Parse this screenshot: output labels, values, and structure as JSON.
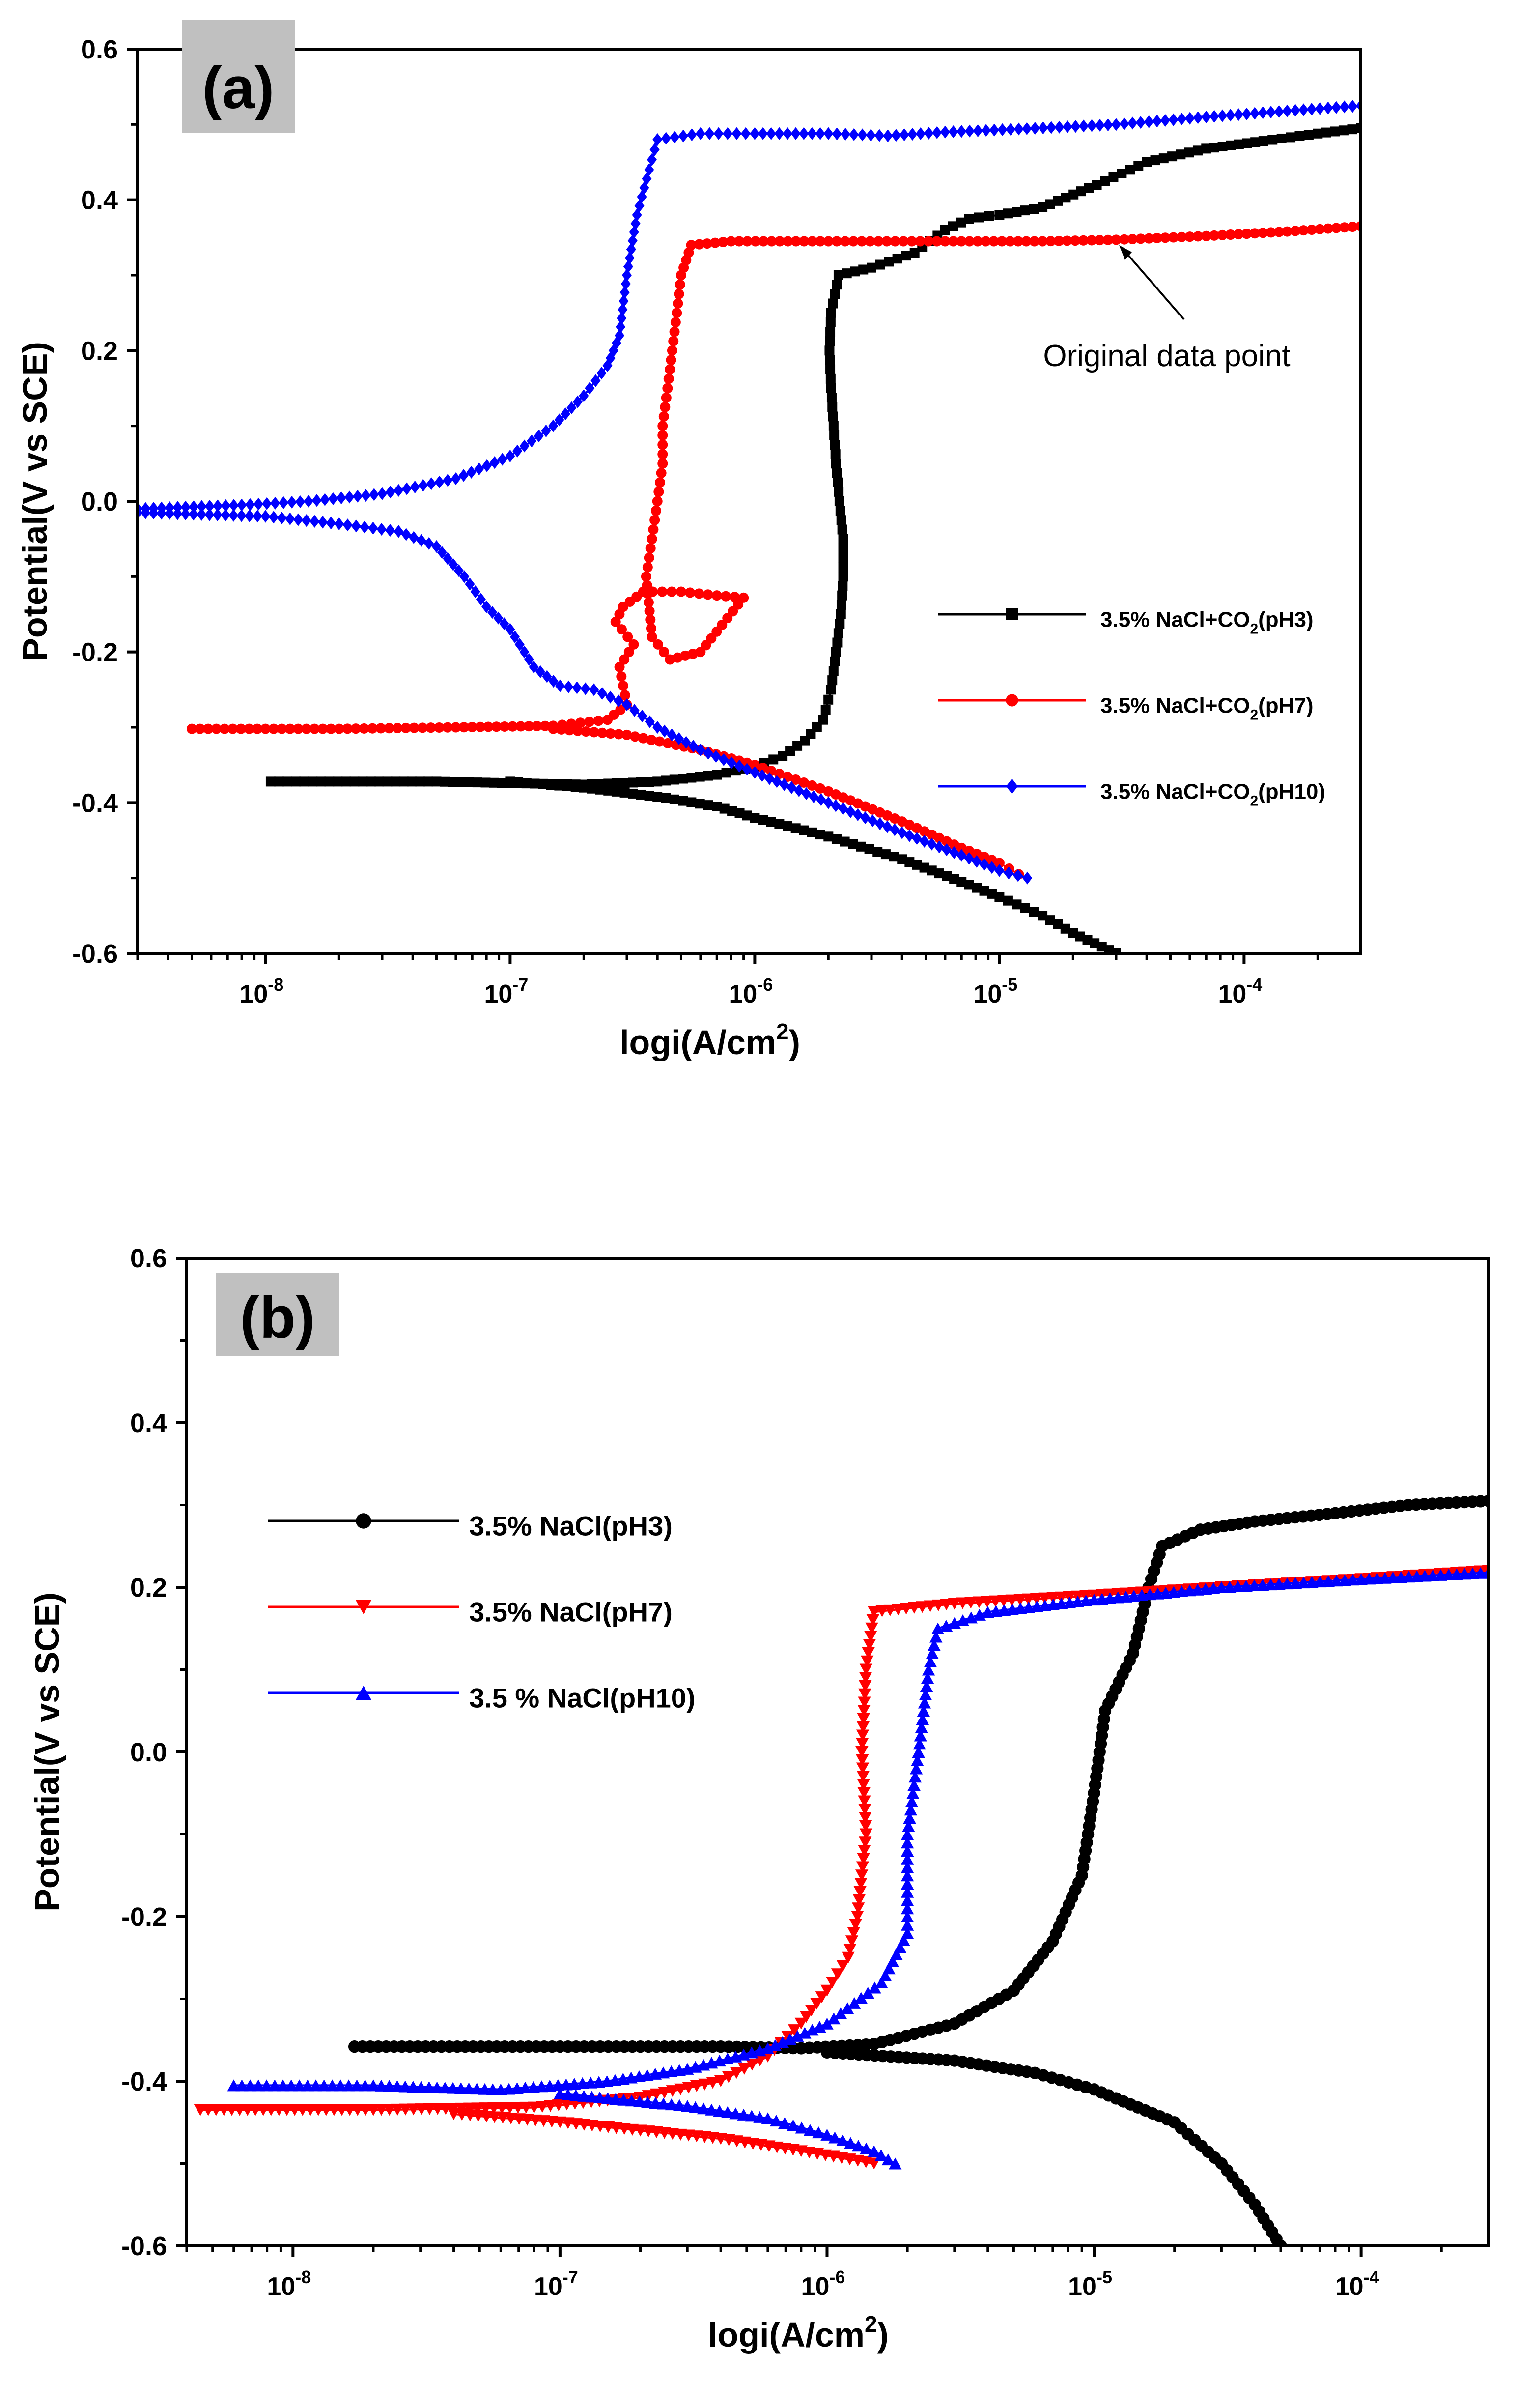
{
  "chart_data": [
    {
      "panel": "(a)",
      "type": "line",
      "xscale": "log",
      "xlim": [
        3e-09,
        0.0003
      ],
      "ylim": [
        -0.6,
        0.6
      ],
      "xlabel": "logi(A/cm",
      "xlabel_sup": "2",
      "xlabel_end": ")",
      "ylabel": "Potential(V vs SCE)",
      "yticks": [
        -0.6,
        -0.4,
        -0.2,
        0.0,
        0.2,
        0.4,
        0.6
      ],
      "ytick_labels": [
        "-0.6",
        "-0.4",
        "-0.2",
        "0.0",
        "0.2",
        "0.4",
        "0.6"
      ],
      "xticks": [
        {
          "base": "10",
          "exp": "-8"
        },
        {
          "base": "10",
          "exp": "-7"
        },
        {
          "base": "10",
          "exp": "-6"
        },
        {
          "base": "10",
          "exp": "-5"
        },
        {
          "base": "10",
          "exp": "-4"
        }
      ],
      "annotation": {
        "text": "Original data point",
        "x": 3e-05,
        "y": 0.345
      },
      "legend_position": "right",
      "series": [
        {
          "name": "3.5% NaCl+CO2(pH3)",
          "label_parts": [
            "3.5% NaCl+CO",
            "2",
            "(pH3)"
          ],
          "color": "#000000",
          "marker": "square",
          "points": [
            [
              1.05e-08,
              -0.372
            ],
            [
              2.5e-08,
              -0.372
            ],
            [
              5e-08,
              -0.372
            ],
            [
              1e-07,
              -0.374
            ],
            [
              2e-07,
              -0.376
            ],
            [
              4e-07,
              -0.372
            ],
            [
              7e-07,
              -0.363
            ],
            [
              1e-06,
              -0.352
            ],
            [
              1.3e-06,
              -0.338
            ],
            [
              1.6e-06,
              -0.318
            ],
            [
              1.9e-06,
              -0.29
            ],
            [
              2.05e-06,
              -0.25
            ],
            [
              2.15e-06,
              -0.2
            ],
            [
              2.25e-06,
              -0.15
            ],
            [
              2.3e-06,
              -0.1
            ],
            [
              2.3e-06,
              -0.05
            ],
            [
              2.22e-06,
              0.0
            ],
            [
              2.15e-06,
              0.05
            ],
            [
              2.1e-06,
              0.1
            ],
            [
              2.05e-06,
              0.15
            ],
            [
              2.02e-06,
              0.2
            ],
            [
              2.05e-06,
              0.25
            ],
            [
              2.2e-06,
              0.3
            ],
            [
              3e-06,
              0.31
            ],
            [
              4.5e-06,
              0.33
            ],
            [
              6e-06,
              0.36
            ],
            [
              7.5e-06,
              0.375
            ],
            [
              1e-05,
              0.38
            ],
            [
              1.5e-05,
              0.39
            ],
            [
              2.5e-05,
              0.42
            ],
            [
              4e-05,
              0.45
            ],
            [
              7e-05,
              0.468
            ],
            [
              0.00012,
              0.478
            ],
            [
              0.0002,
              0.488
            ],
            [
              0.0003,
              0.495
            ]
          ]
        },
        {
          "name": "3.5% NaCl+CO2(pH3) cathodic",
          "label_parts": [],
          "color": "#000000",
          "marker": "square",
          "points": [
            [
              1e-07,
              -0.372
            ],
            [
              2e-07,
              -0.38
            ],
            [
              4e-07,
              -0.392
            ],
            [
              7e-07,
              -0.405
            ],
            [
              1e-06,
              -0.42
            ],
            [
              2e-06,
              -0.445
            ],
            [
              4e-06,
              -0.475
            ],
            [
              7e-06,
              -0.505
            ],
            [
              1e-05,
              -0.525
            ],
            [
              1.5e-05,
              -0.55
            ],
            [
              2e-05,
              -0.573
            ],
            [
              3e-05,
              -0.6
            ]
          ]
        },
        {
          "name": "3.5% NaCl+CO2(pH7)",
          "label_parts": [
            "3.5% NaCl+CO",
            "2",
            "(pH7)"
          ],
          "color": "#ff0000",
          "marker": "circle",
          "points": [
            [
              5e-09,
              -0.302
            ],
            [
              2e-08,
              -0.302
            ],
            [
              6e-08,
              -0.3
            ],
            [
              1.5e-07,
              -0.298
            ],
            [
              2.5e-07,
              -0.29
            ],
            [
              3e-07,
              -0.27
            ],
            [
              2.8e-07,
              -0.22
            ],
            [
              3.2e-07,
              -0.19
            ],
            [
              2.7e-07,
              -0.16
            ],
            [
              2.9e-07,
              -0.14
            ],
            [
              3.5e-07,
              -0.12
            ],
            [
              5e-07,
              -0.12
            ],
            [
              7e-07,
              -0.125
            ],
            [
              9e-07,
              -0.128
            ],
            [
              6e-07,
              -0.2
            ],
            [
              4.5e-07,
              -0.21
            ],
            [
              3.8e-07,
              -0.18
            ],
            [
              3.6e-07,
              -0.1
            ],
            [
              3.8e-07,
              -0.05
            ],
            [
              4e-07,
              0.0
            ],
            [
              4.2e-07,
              0.05
            ],
            [
              4.2e-07,
              0.1
            ],
            [
              4.4e-07,
              0.15
            ],
            [
              4.6e-07,
              0.2
            ],
            [
              4.8e-07,
              0.25
            ],
            [
              5e-07,
              0.3
            ],
            [
              5.5e-07,
              0.34
            ],
            [
              8e-07,
              0.345
            ],
            [
              2e-06,
              0.345
            ],
            [
              6e-06,
              0.345
            ],
            [
              1.5e-05,
              0.345
            ],
            [
              3e-05,
              0.347
            ],
            [
              7e-05,
              0.352
            ],
            [
              0.00015,
              0.358
            ],
            [
              0.0003,
              0.365
            ]
          ]
        },
        {
          "name": "3.5% NaCl+CO2(pH7) cathodic",
          "label_parts": [],
          "color": "#ff0000",
          "marker": "circle",
          "points": [
            [
              1.5e-07,
              -0.302
            ],
            [
              3e-07,
              -0.31
            ],
            [
              6e-07,
              -0.33
            ],
            [
              1e-06,
              -0.35
            ],
            [
              2e-06,
              -0.385
            ],
            [
              4e-06,
              -0.425
            ],
            [
              7e-06,
              -0.46
            ],
            [
              1e-05,
              -0.48
            ],
            [
              1.2e-05,
              -0.495
            ]
          ]
        },
        {
          "name": "3.5% NaCl+CO2(pH10)",
          "label_parts": [
            "3.5% NaCl+CO",
            "2",
            "(pH10)"
          ],
          "color": "#0000ff",
          "marker": "diamond",
          "points": [
            [
              3e-09,
              -0.01
            ],
            [
              8e-09,
              -0.005
            ],
            [
              1.5e-08,
              0.0
            ],
            [
              3e-08,
              0.01
            ],
            [
              6e-08,
              0.03
            ],
            [
              1e-07,
              0.06
            ],
            [
              1.5e-07,
              0.1
            ],
            [
              2e-07,
              0.14
            ],
            [
              2.5e-07,
              0.18
            ],
            [
              2.8e-07,
              0.22
            ],
            [
              3e-07,
              0.3
            ],
            [
              3.3e-07,
              0.38
            ],
            [
              3.7e-07,
              0.44
            ],
            [
              4e-07,
              0.48
            ],
            [
              6e-07,
              0.488
            ],
            [
              1e-06,
              0.488
            ],
            [
              2e-06,
              0.488
            ],
            [
              3.5e-06,
              0.485
            ],
            [
              6e-06,
              0.49
            ],
            [
              1.2e-05,
              0.494
            ],
            [
              3e-05,
              0.5
            ],
            [
              7e-05,
              0.51
            ],
            [
              0.00015,
              0.518
            ],
            [
              0.0003,
              0.525
            ]
          ]
        },
        {
          "name": "3.5% NaCl+CO2(pH10) cathodic",
          "label_parts": [],
          "color": "#0000ff",
          "marker": "diamond",
          "points": [
            [
              3e-09,
              -0.015
            ],
            [
              1e-08,
              -0.02
            ],
            [
              2e-08,
              -0.03
            ],
            [
              3.5e-08,
              -0.04
            ],
            [
              5e-08,
              -0.06
            ],
            [
              6.5e-08,
              -0.1
            ],
            [
              8e-08,
              -0.14
            ],
            [
              1e-07,
              -0.17
            ],
            [
              1.25e-07,
              -0.22
            ],
            [
              1.6e-07,
              -0.245
            ],
            [
              2.2e-07,
              -0.25
            ],
            [
              3e-07,
              -0.27
            ],
            [
              4e-07,
              -0.3
            ],
            [
              6e-07,
              -0.33
            ],
            [
              1e-06,
              -0.36
            ],
            [
              2e-06,
              -0.4
            ],
            [
              4e-06,
              -0.44
            ],
            [
              7e-06,
              -0.47
            ],
            [
              1e-05,
              -0.49
            ],
            [
              1.3e-05,
              -0.5
            ]
          ]
        }
      ]
    },
    {
      "panel": "(b)",
      "type": "line",
      "xscale": "log",
      "xlim": [
        4e-09,
        0.0003
      ],
      "ylim": [
        -0.6,
        0.6
      ],
      "xlabel": "logi(A/cm",
      "xlabel_sup": "2",
      "xlabel_end": ")",
      "ylabel": "Potential(V vs SCE)",
      "yticks": [
        -0.6,
        -0.4,
        -0.2,
        0.0,
        0.2,
        0.4,
        0.6
      ],
      "ytick_labels": [
        "-0.6",
        "-0.4",
        "-0.2",
        "0.0",
        "0.2",
        "0.4",
        "0.6"
      ],
      "xticks": [
        {
          "base": "10",
          "exp": "-8"
        },
        {
          "base": "10",
          "exp": "-7"
        },
        {
          "base": "10",
          "exp": "-6"
        },
        {
          "base": "10",
          "exp": "-5"
        },
        {
          "base": "10",
          "exp": "-4"
        }
      ],
      "legend_position": "left",
      "series": [
        {
          "name": "3.5% NaCl(pH3)",
          "label_parts": [
            "3.5% NaCl(pH3)"
          ],
          "color": "#000000",
          "marker": "circle",
          "points": [
            [
              1.7e-08,
              -0.358
            ],
            [
              1e-07,
              -0.358
            ],
            [
              4e-07,
              -0.358
            ],
            [
              8e-07,
              -0.36
            ],
            [
              1.5e-06,
              -0.355
            ],
            [
              3e-06,
              -0.33
            ],
            [
              5e-06,
              -0.29
            ],
            [
              7e-06,
              -0.23
            ],
            [
              9e-06,
              -0.15
            ],
            [
              1e-05,
              -0.05
            ],
            [
              1.1e-05,
              0.05
            ],
            [
              1.4e-05,
              0.12
            ],
            [
              1.6e-05,
              0.2
            ],
            [
              1.8e-05,
              0.25
            ],
            [
              2.5e-05,
              0.27
            ],
            [
              4e-05,
              0.28
            ],
            [
              8e-05,
              0.29
            ],
            [
              0.00015,
              0.3
            ],
            [
              0.0003,
              0.305
            ]
          ]
        },
        {
          "name": "3.5% NaCl(pH3) cathodic",
          "label_parts": [],
          "color": "#000000",
          "marker": "circle",
          "points": [
            [
              1e-06,
              -0.365
            ],
            [
              3e-06,
              -0.375
            ],
            [
              6e-06,
              -0.39
            ],
            [
              1e-05,
              -0.41
            ],
            [
              2e-05,
              -0.45
            ],
            [
              3e-05,
              -0.5
            ],
            [
              4e-05,
              -0.55
            ],
            [
              5e-05,
              -0.6
            ]
          ]
        },
        {
          "name": "3.5% NaCl(pH7)",
          "label_parts": [
            "3.5% NaCl(pH7)"
          ],
          "color": "#ff0000",
          "marker": "triangle-down",
          "points": [
            [
              4.5e-09,
              -0.435
            ],
            [
              2e-08,
              -0.435
            ],
            [
              8e-08,
              -0.432
            ],
            [
              2e-07,
              -0.42
            ],
            [
              4e-07,
              -0.4
            ],
            [
              6e-07,
              -0.37
            ],
            [
              8e-07,
              -0.33
            ],
            [
              1e-06,
              -0.29
            ],
            [
              1.2e-06,
              -0.25
            ],
            [
              1.3e-06,
              -0.2
            ],
            [
              1.4e-06,
              -0.1
            ],
            [
              1.35e-06,
              0.0
            ],
            [
              1.4e-06,
              0.1
            ],
            [
              1.5e-06,
              0.17
            ],
            [
              3e-06,
              0.18
            ],
            [
              1e-05,
              0.19
            ],
            [
              3e-05,
              0.2
            ],
            [
              0.0001,
              0.21
            ],
            [
              0.0003,
              0.22
            ]
          ]
        },
        {
          "name": "3.5% NaCl(pH7) cathodic",
          "label_parts": [],
          "color": "#ff0000",
          "marker": "triangle-down",
          "points": [
            [
              4e-08,
              -0.44
            ],
            [
              1e-07,
              -0.45
            ],
            [
              2e-07,
              -0.46
            ],
            [
              4e-07,
              -0.47
            ],
            [
              8e-07,
              -0.485
            ],
            [
              1.5e-06,
              -0.5
            ]
          ]
        },
        {
          "name": "3.5 % NaCl(pH10)",
          "label_parts": [
            "3.5 % NaCl(pH10)"
          ],
          "color": "#0000ff",
          "marker": "triangle-up",
          "points": [
            [
              6e-09,
              -0.405
            ],
            [
              2e-08,
              -0.405
            ],
            [
              6e-08,
              -0.41
            ],
            [
              1.5e-07,
              -0.4
            ],
            [
              3e-07,
              -0.385
            ],
            [
              6e-07,
              -0.36
            ],
            [
              1e-06,
              -0.33
            ],
            [
              1.6e-06,
              -0.28
            ],
            [
              2e-06,
              -0.22
            ],
            [
              2e-06,
              -0.16
            ],
            [
              2e-06,
              -0.1
            ],
            [
              2.2e-06,
              0.0
            ],
            [
              2.4e-06,
              0.1
            ],
            [
              2.6e-06,
              0.15
            ],
            [
              4e-06,
              0.17
            ],
            [
              1e-05,
              0.185
            ],
            [
              3e-05,
              0.2
            ],
            [
              0.0001,
              0.21
            ],
            [
              0.0003,
              0.218
            ]
          ]
        },
        {
          "name": "3.5 % NaCl(pH10) cathodic",
          "label_parts": [],
          "color": "#0000ff",
          "marker": "triangle-up",
          "points": [
            [
              1e-07,
              -0.415
            ],
            [
              3e-07,
              -0.43
            ],
            [
              6e-07,
              -0.445
            ],
            [
              1e-06,
              -0.465
            ],
            [
              1.5e-06,
              -0.485
            ],
            [
              1.8e-06,
              -0.5
            ]
          ]
        }
      ]
    }
  ]
}
